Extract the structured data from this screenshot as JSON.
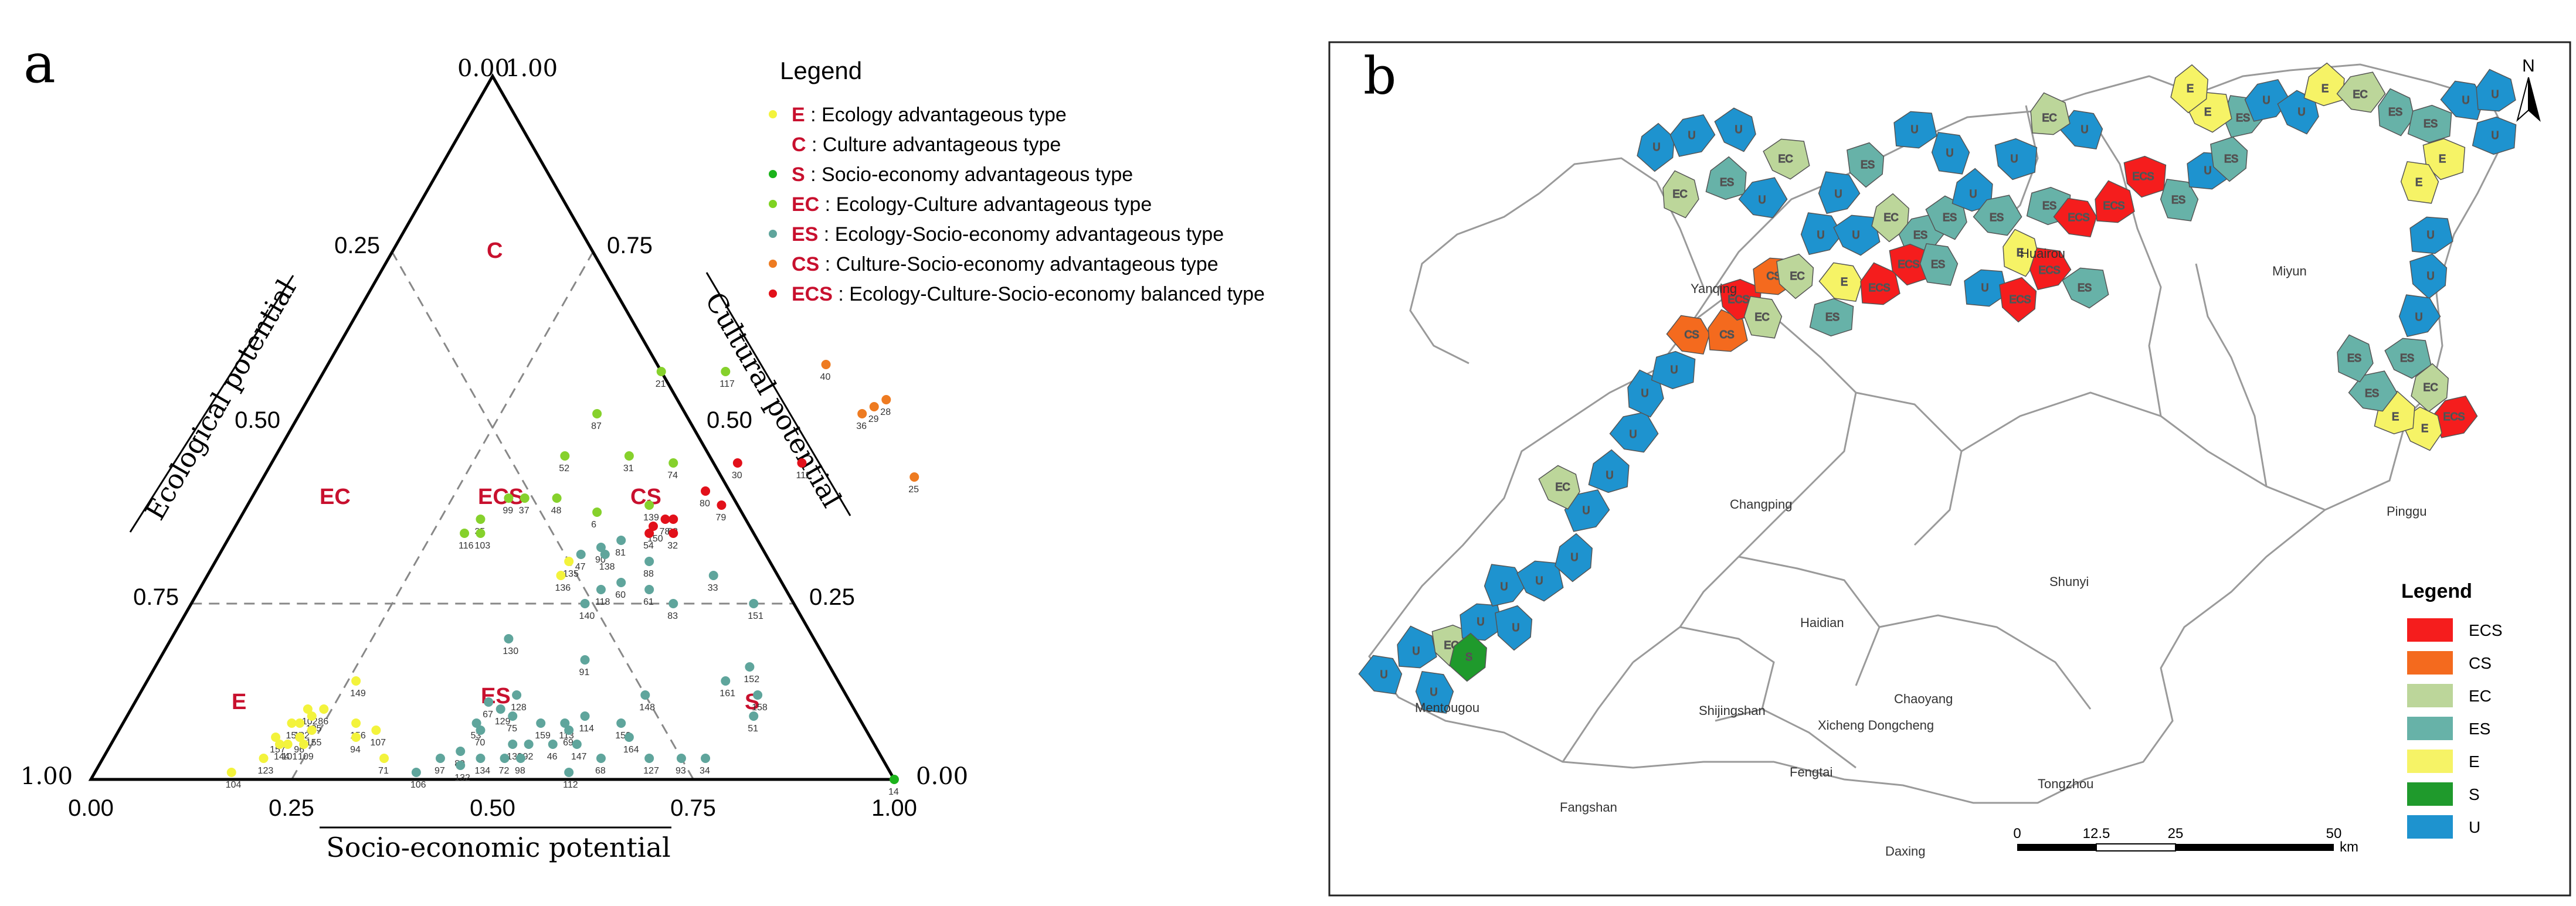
{
  "panel_a": {
    "letter": "a",
    "legend_title": "Legend",
    "legend": [
      {
        "code": "E",
        "desc": ": Ecology advantageous type",
        "color": "#f3f33c"
      },
      {
        "code": "C",
        "desc": ": Culture advantageous type",
        "color": "#ffffff"
      },
      {
        "code": "S",
        "desc": ": Socio-economy advantageous type",
        "color": "#1bb31b"
      },
      {
        "code": "EC",
        "desc": ": Ecology-Culture advantageous type",
        "color": "#7ed321"
      },
      {
        "code": "ES",
        "desc": ": Ecology-Socio-economy advantageous type",
        "color": "#5fa59c"
      },
      {
        "code": "CS",
        "desc": ": Culture-Socio-economy advantageous type",
        "color": "#ee7b21"
      },
      {
        "code": "ECS",
        "desc": ": Ecology-Culture-Socio-economy balanced type",
        "color": "#e2101a"
      }
    ],
    "axis_titles": {
      "left": "Ecological potential",
      "right": "Cultural potential",
      "bottom": "Socio-economic potential"
    },
    "apex_labels": {
      "top_left": "0.00",
      "top_right": "1.00",
      "left": "1.00",
      "right": "0.00"
    },
    "bottom_ticks": [
      "0.00",
      "0.25",
      "0.50",
      "0.75",
      "1.00"
    ],
    "left_ticks": [
      "0.25",
      "0.50",
      "0.75"
    ],
    "right_ticks": [
      "0.75",
      "0.50",
      "0.25"
    ],
    "region_labels": [
      "C",
      "EC",
      "ECS",
      "CS",
      "E",
      "ES",
      "S"
    ],
    "colors": {
      "E": "#f3f33c",
      "S": "#1bb31b",
      "EC": "#86d12c",
      "ES": "#5fa59c",
      "CS": "#ee7b21",
      "ECS": "#e2101a"
    },
    "points": [
      {
        "id": "21",
        "t": "EC",
        "b": 0.42,
        "c": 0.58
      },
      {
        "id": "117",
        "t": "EC",
        "b": 0.5,
        "c": 0.58
      },
      {
        "id": "87",
        "t": "EC",
        "b": 0.37,
        "c": 0.52
      },
      {
        "id": "52",
        "t": "EC",
        "b": 0.36,
        "c": 0.46
      },
      {
        "id": "31",
        "t": "EC",
        "b": 0.44,
        "c": 0.46
      },
      {
        "id": "74",
        "t": "EC",
        "b": 0.5,
        "c": 0.45
      },
      {
        "id": "99",
        "t": "EC",
        "b": 0.32,
        "c": 0.4
      },
      {
        "id": "37",
        "t": "EC",
        "b": 0.34,
        "c": 0.4
      },
      {
        "id": "48",
        "t": "EC",
        "b": 0.38,
        "c": 0.4
      },
      {
        "id": "6",
        "t": "EC",
        "b": 0.44,
        "c": 0.38
      },
      {
        "id": "139",
        "t": "EC",
        "b": 0.5,
        "c": 0.39
      },
      {
        "id": "35",
        "t": "EC",
        "b": 0.3,
        "c": 0.37
      },
      {
        "id": "116",
        "t": "EC",
        "b": 0.29,
        "c": 0.35
      },
      {
        "id": "103",
        "t": "EC",
        "b": 0.31,
        "c": 0.35
      },
      {
        "id": "40",
        "t": "CS",
        "b": 0.62,
        "c": 0.59
      },
      {
        "id": "28",
        "t": "CS",
        "b": 0.72,
        "c": 0.54
      },
      {
        "id": "29",
        "t": "CS",
        "b": 0.71,
        "c": 0.53
      },
      {
        "id": "36",
        "t": "CS",
        "b": 0.7,
        "c": 0.52
      },
      {
        "id": "25",
        "t": "CS",
        "b": 0.81,
        "c": 0.43
      },
      {
        "id": "30",
        "t": "ECS",
        "b": 0.58,
        "c": 0.45
      },
      {
        "id": "80",
        "t": "ECS",
        "b": 0.56,
        "c": 0.41
      },
      {
        "id": "111",
        "t": "ECS",
        "b": 0.66,
        "c": 0.45
      },
      {
        "id": "79",
        "t": "ECS",
        "b": 0.59,
        "c": 0.39
      },
      {
        "id": "78",
        "t": "ECS",
        "b": 0.53,
        "c": 0.37
      },
      {
        "id": "82",
        "t": "ECS",
        "b": 0.54,
        "c": 0.37
      },
      {
        "id": "150",
        "t": "ECS",
        "b": 0.52,
        "c": 0.36
      },
      {
        "id": "54",
        "t": "ECS",
        "b": 0.52,
        "c": 0.35
      },
      {
        "id": "32",
        "t": "ECS",
        "b": 0.55,
        "c": 0.35
      },
      {
        "id": "90",
        "t": "ES",
        "b": 0.47,
        "c": 0.33
      },
      {
        "id": "81",
        "t": "ES",
        "b": 0.49,
        "c": 0.34
      },
      {
        "id": "138",
        "t": "ES",
        "b": 0.48,
        "c": 0.32
      },
      {
        "id": "47",
        "t": "ES",
        "b": 0.45,
        "c": 0.32
      },
      {
        "id": "135",
        "t": "E",
        "b": 0.44,
        "c": 0.31
      },
      {
        "id": "136",
        "t": "E",
        "b": 0.44,
        "c": 0.29
      },
      {
        "id": "88",
        "t": "ES",
        "b": 0.54,
        "c": 0.31
      },
      {
        "id": "60",
        "t": "ES",
        "b": 0.52,
        "c": 0.28
      },
      {
        "id": "118",
        "t": "ES",
        "b": 0.5,
        "c": 0.27
      },
      {
        "id": "140",
        "t": "ES",
        "b": 0.49,
        "c": 0.25
      },
      {
        "id": "61",
        "t": "ES",
        "b": 0.56,
        "c": 0.27
      },
      {
        "id": "83",
        "t": "ES",
        "b": 0.6,
        "c": 0.25
      },
      {
        "id": "33",
        "t": "ES",
        "b": 0.63,
        "c": 0.29
      },
      {
        "id": "151",
        "t": "ES",
        "b": 0.7,
        "c": 0.25
      },
      {
        "id": "130",
        "t": "ES",
        "b": 0.42,
        "c": 0.2
      },
      {
        "id": "91",
        "t": "ES",
        "b": 0.53,
        "c": 0.17
      },
      {
        "id": "152",
        "t": "ES",
        "b": 0.74,
        "c": 0.16
      },
      {
        "id": "161",
        "t": "ES",
        "b": 0.72,
        "c": 0.14
      },
      {
        "id": "148",
        "t": "ES",
        "b": 0.63,
        "c": 0.12
      },
      {
        "id": "158",
        "t": "ES",
        "b": 0.77,
        "c": 0.12
      },
      {
        "id": "51",
        "t": "ES",
        "b": 0.78,
        "c": 0.09
      },
      {
        "id": "114",
        "t": "ES",
        "b": 0.57,
        "c": 0.09
      },
      {
        "id": "113",
        "t": "ES",
        "b": 0.55,
        "c": 0.08
      },
      {
        "id": "159",
        "t": "ES",
        "b": 0.52,
        "c": 0.08
      },
      {
        "id": "69",
        "t": "ES",
        "b": 0.56,
        "c": 0.07
      },
      {
        "id": "153",
        "t": "ES",
        "b": 0.62,
        "c": 0.08
      },
      {
        "id": "164",
        "t": "ES",
        "b": 0.64,
        "c": 0.06
      },
      {
        "id": "147",
        "t": "ES",
        "b": 0.58,
        "c": 0.05
      },
      {
        "id": "46",
        "t": "ES",
        "b": 0.55,
        "c": 0.05
      },
      {
        "id": "92",
        "t": "ES",
        "b": 0.52,
        "c": 0.05
      },
      {
        "id": "68",
        "t": "ES",
        "b": 0.62,
        "c": 0.03
      },
      {
        "id": "127",
        "t": "ES",
        "b": 0.68,
        "c": 0.03
      },
      {
        "id": "93",
        "t": "ES",
        "b": 0.72,
        "c": 0.03
      },
      {
        "id": "34",
        "t": "ES",
        "b": 0.75,
        "c": 0.03
      },
      {
        "id": "112",
        "t": "ES",
        "b": 0.59,
        "c": 0.01
      },
      {
        "id": "128",
        "t": "ES",
        "b": 0.47,
        "c": 0.12
      },
      {
        "id": "67",
        "t": "ES",
        "b": 0.44,
        "c": 0.11
      },
      {
        "id": "129",
        "t": "ES",
        "b": 0.46,
        "c": 0.1
      },
      {
        "id": "75",
        "t": "ES",
        "b": 0.48,
        "c": 0.09
      },
      {
        "id": "53",
        "t": "ES",
        "b": 0.44,
        "c": 0.08
      },
      {
        "id": "70",
        "t": "ES",
        "b": 0.45,
        "c": 0.07
      },
      {
        "id": "133",
        "t": "ES",
        "b": 0.5,
        "c": 0.05
      },
      {
        "id": "72",
        "t": "ES",
        "b": 0.5,
        "c": 0.03
      },
      {
        "id": "98",
        "t": "ES",
        "b": 0.52,
        "c": 0.03
      },
      {
        "id": "134",
        "t": "ES",
        "b": 0.47,
        "c": 0.03
      },
      {
        "id": "89",
        "t": "ES",
        "b": 0.44,
        "c": 0.04
      },
      {
        "id": "97",
        "t": "ES",
        "b": 0.42,
        "c": 0.03
      },
      {
        "id": "132",
        "t": "ES",
        "b": 0.45,
        "c": 0.02
      },
      {
        "id": "106",
        "t": "ES",
        "b": 0.4,
        "c": 0.01
      },
      {
        "id": "149",
        "t": "E",
        "b": 0.26,
        "c": 0.14
      },
      {
        "id": "102",
        "t": "E",
        "b": 0.22,
        "c": 0.1
      },
      {
        "id": "86",
        "t": "E",
        "b": 0.24,
        "c": 0.1
      },
      {
        "id": "105",
        "t": "E",
        "b": 0.23,
        "c": 0.09
      },
      {
        "id": "154",
        "t": "E",
        "b": 0.21,
        "c": 0.08
      },
      {
        "id": "122",
        "t": "E",
        "b": 0.22,
        "c": 0.08
      },
      {
        "id": "155",
        "t": "E",
        "b": 0.24,
        "c": 0.07
      },
      {
        "id": "157",
        "t": "E",
        "b": 0.2,
        "c": 0.06
      },
      {
        "id": "96",
        "t": "E",
        "b": 0.23,
        "c": 0.06
      },
      {
        "id": "101",
        "t": "E",
        "b": 0.22,
        "c": 0.05
      },
      {
        "id": "144",
        "t": "E",
        "b": 0.21,
        "c": 0.05
      },
      {
        "id": "109",
        "t": "E",
        "b": 0.24,
        "c": 0.05
      },
      {
        "id": "123",
        "t": "E",
        "b": 0.2,
        "c": 0.03
      },
      {
        "id": "104",
        "t": "E",
        "b": 0.17,
        "c": 0.01
      },
      {
        "id": "156",
        "t": "E",
        "b": 0.29,
        "c": 0.08
      },
      {
        "id": "107",
        "t": "E",
        "b": 0.32,
        "c": 0.07
      },
      {
        "id": "94",
        "t": "E",
        "b": 0.3,
        "c": 0.06
      },
      {
        "id": "71",
        "t": "E",
        "b": 0.35,
        "c": 0.03
      },
      {
        "id": "14",
        "t": "S",
        "b": 1.0,
        "c": 0.0
      }
    ]
  },
  "panel_b": {
    "letter": "b",
    "north": "N",
    "legend_title": "Legend",
    "legend": [
      {
        "label": "ECS",
        "color": "#f51d1d"
      },
      {
        "label": "CS",
        "color": "#f46a1e"
      },
      {
        "label": "EC",
        "color": "#bcd69a"
      },
      {
        "label": "ES",
        "color": "#67b2a8"
      },
      {
        "label": "E",
        "color": "#f6f366"
      },
      {
        "label": "S",
        "color": "#1f9a2c"
      },
      {
        "label": "U",
        "color": "#1e93cf"
      }
    ],
    "scale": {
      "ticks": [
        "0",
        "12.5",
        "25",
        "50"
      ],
      "unit": "km"
    },
    "districts": [
      "Huairou",
      "Miyun",
      "Yanqing",
      "Pinggu",
      "Changping",
      "Shunyi",
      "Haidian",
      "Mentougou",
      "Shijingshan",
      "Chaoyang",
      "Xicheng Dongcheng",
      "Fengtai",
      "Tongzhou",
      "Fangshan",
      "Daxing"
    ]
  }
}
